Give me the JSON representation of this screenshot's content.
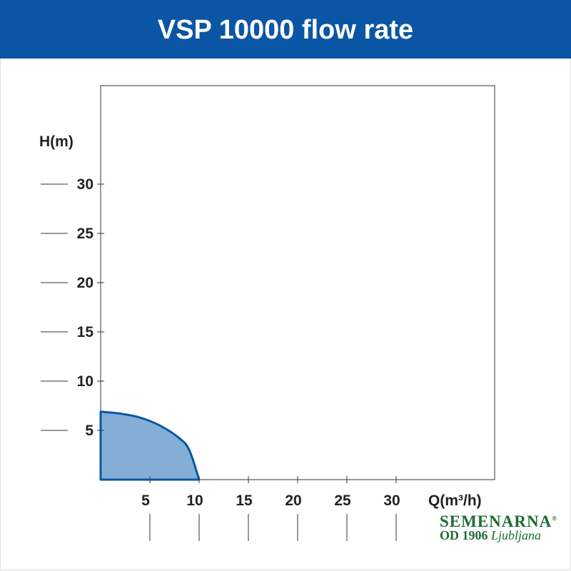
{
  "header": {
    "title": "VSP 10000 flow rate"
  },
  "chart_data": {
    "type": "area",
    "title": "VSP 10000 flow rate",
    "xlabel": "Q(m³/h)",
    "ylabel": "H(m)",
    "xlim": [
      0,
      40
    ],
    "ylim": [
      0,
      40
    ],
    "xticks": [
      5,
      10,
      15,
      20,
      25,
      30
    ],
    "yticks": [
      5,
      10,
      15,
      20,
      25,
      30
    ],
    "series": [
      {
        "name": "VSP 10000",
        "x": [
          0,
          2,
          4,
          6,
          8,
          9,
          10
        ],
        "y": [
          6.9,
          6.7,
          6.3,
          5.5,
          4.2,
          3.0,
          0
        ]
      }
    ],
    "colors": {
      "fill": "#84aed6",
      "line": "#0b56a4"
    },
    "grid": false
  },
  "logo": {
    "line1": "SEMENARNA",
    "mark": "®",
    "line2a": "OD 1906",
    "line2b": "Ljubljana"
  }
}
